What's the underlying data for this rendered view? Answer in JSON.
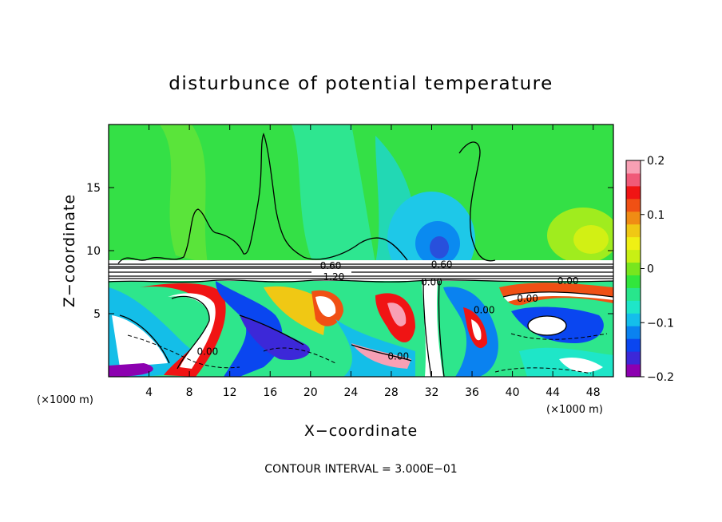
{
  "chart_data": {
    "type": "heatmap",
    "title": "disturbunce of potential temperature",
    "xlabel": "X−coordinate",
    "ylabel": "Z−coordinate",
    "x_unit_left": "(×1000 m)",
    "x_unit_right": "(×1000 m)",
    "xlim": [
      0,
      50
    ],
    "ylim": [
      0,
      20
    ],
    "x_ticks": [
      4,
      8,
      12,
      16,
      20,
      24,
      28,
      32,
      36,
      40,
      44,
      48
    ],
    "x_tick_labels": [
      "4",
      "8",
      "12",
      "16",
      "20",
      "24",
      "28",
      "32",
      "36",
      "40",
      "44",
      "48"
    ],
    "y_ticks": [
      5,
      10,
      15
    ],
    "y_tick_labels": [
      "5",
      "10",
      "15"
    ],
    "colorbar": {
      "range": [
        -0.2,
        0.2
      ],
      "tick_values": [
        0.2,
        0.1,
        0,
        -0.1,
        -0.2
      ],
      "tick_labels": [
        "0.2",
        "0.1",
        "0",
        "−0.1",
        "−0.2"
      ],
      "colors": [
        "#8c00b0",
        "#3c28d8",
        "#0a46f0",
        "#0a82f0",
        "#14beeb",
        "#1ee6c8",
        "#28e68c",
        "#32e63c",
        "#78e61e",
        "#c8f014",
        "#f0f014",
        "#f0c814",
        "#f08c14",
        "#f05014",
        "#f01414",
        "#f05a78",
        "#f8a0b4"
      ]
    },
    "contour_labels": [
      {
        "text": "0.60",
        "x": 22.0,
        "y": 8.8
      },
      {
        "text": "1.20",
        "x": 22.3,
        "y": 7.9
      },
      {
        "text": "0.60",
        "x": 33.0,
        "y": 8.9
      },
      {
        "text": "0.00",
        "x": 32.0,
        "y": 7.5
      },
      {
        "text": "0.00",
        "x": 41.5,
        "y": 6.2
      },
      {
        "text": "0.00",
        "x": 45.5,
        "y": 7.6
      },
      {
        "text": "0.00",
        "x": 37.2,
        "y": 5.3
      },
      {
        "text": "0.00",
        "x": 9.8,
        "y": 2.0
      },
      {
        "text": "0.00",
        "x": 28.7,
        "y": 1.6
      }
    ],
    "annotation": "CONTOUR INTERVAL = 3.000E−01"
  }
}
